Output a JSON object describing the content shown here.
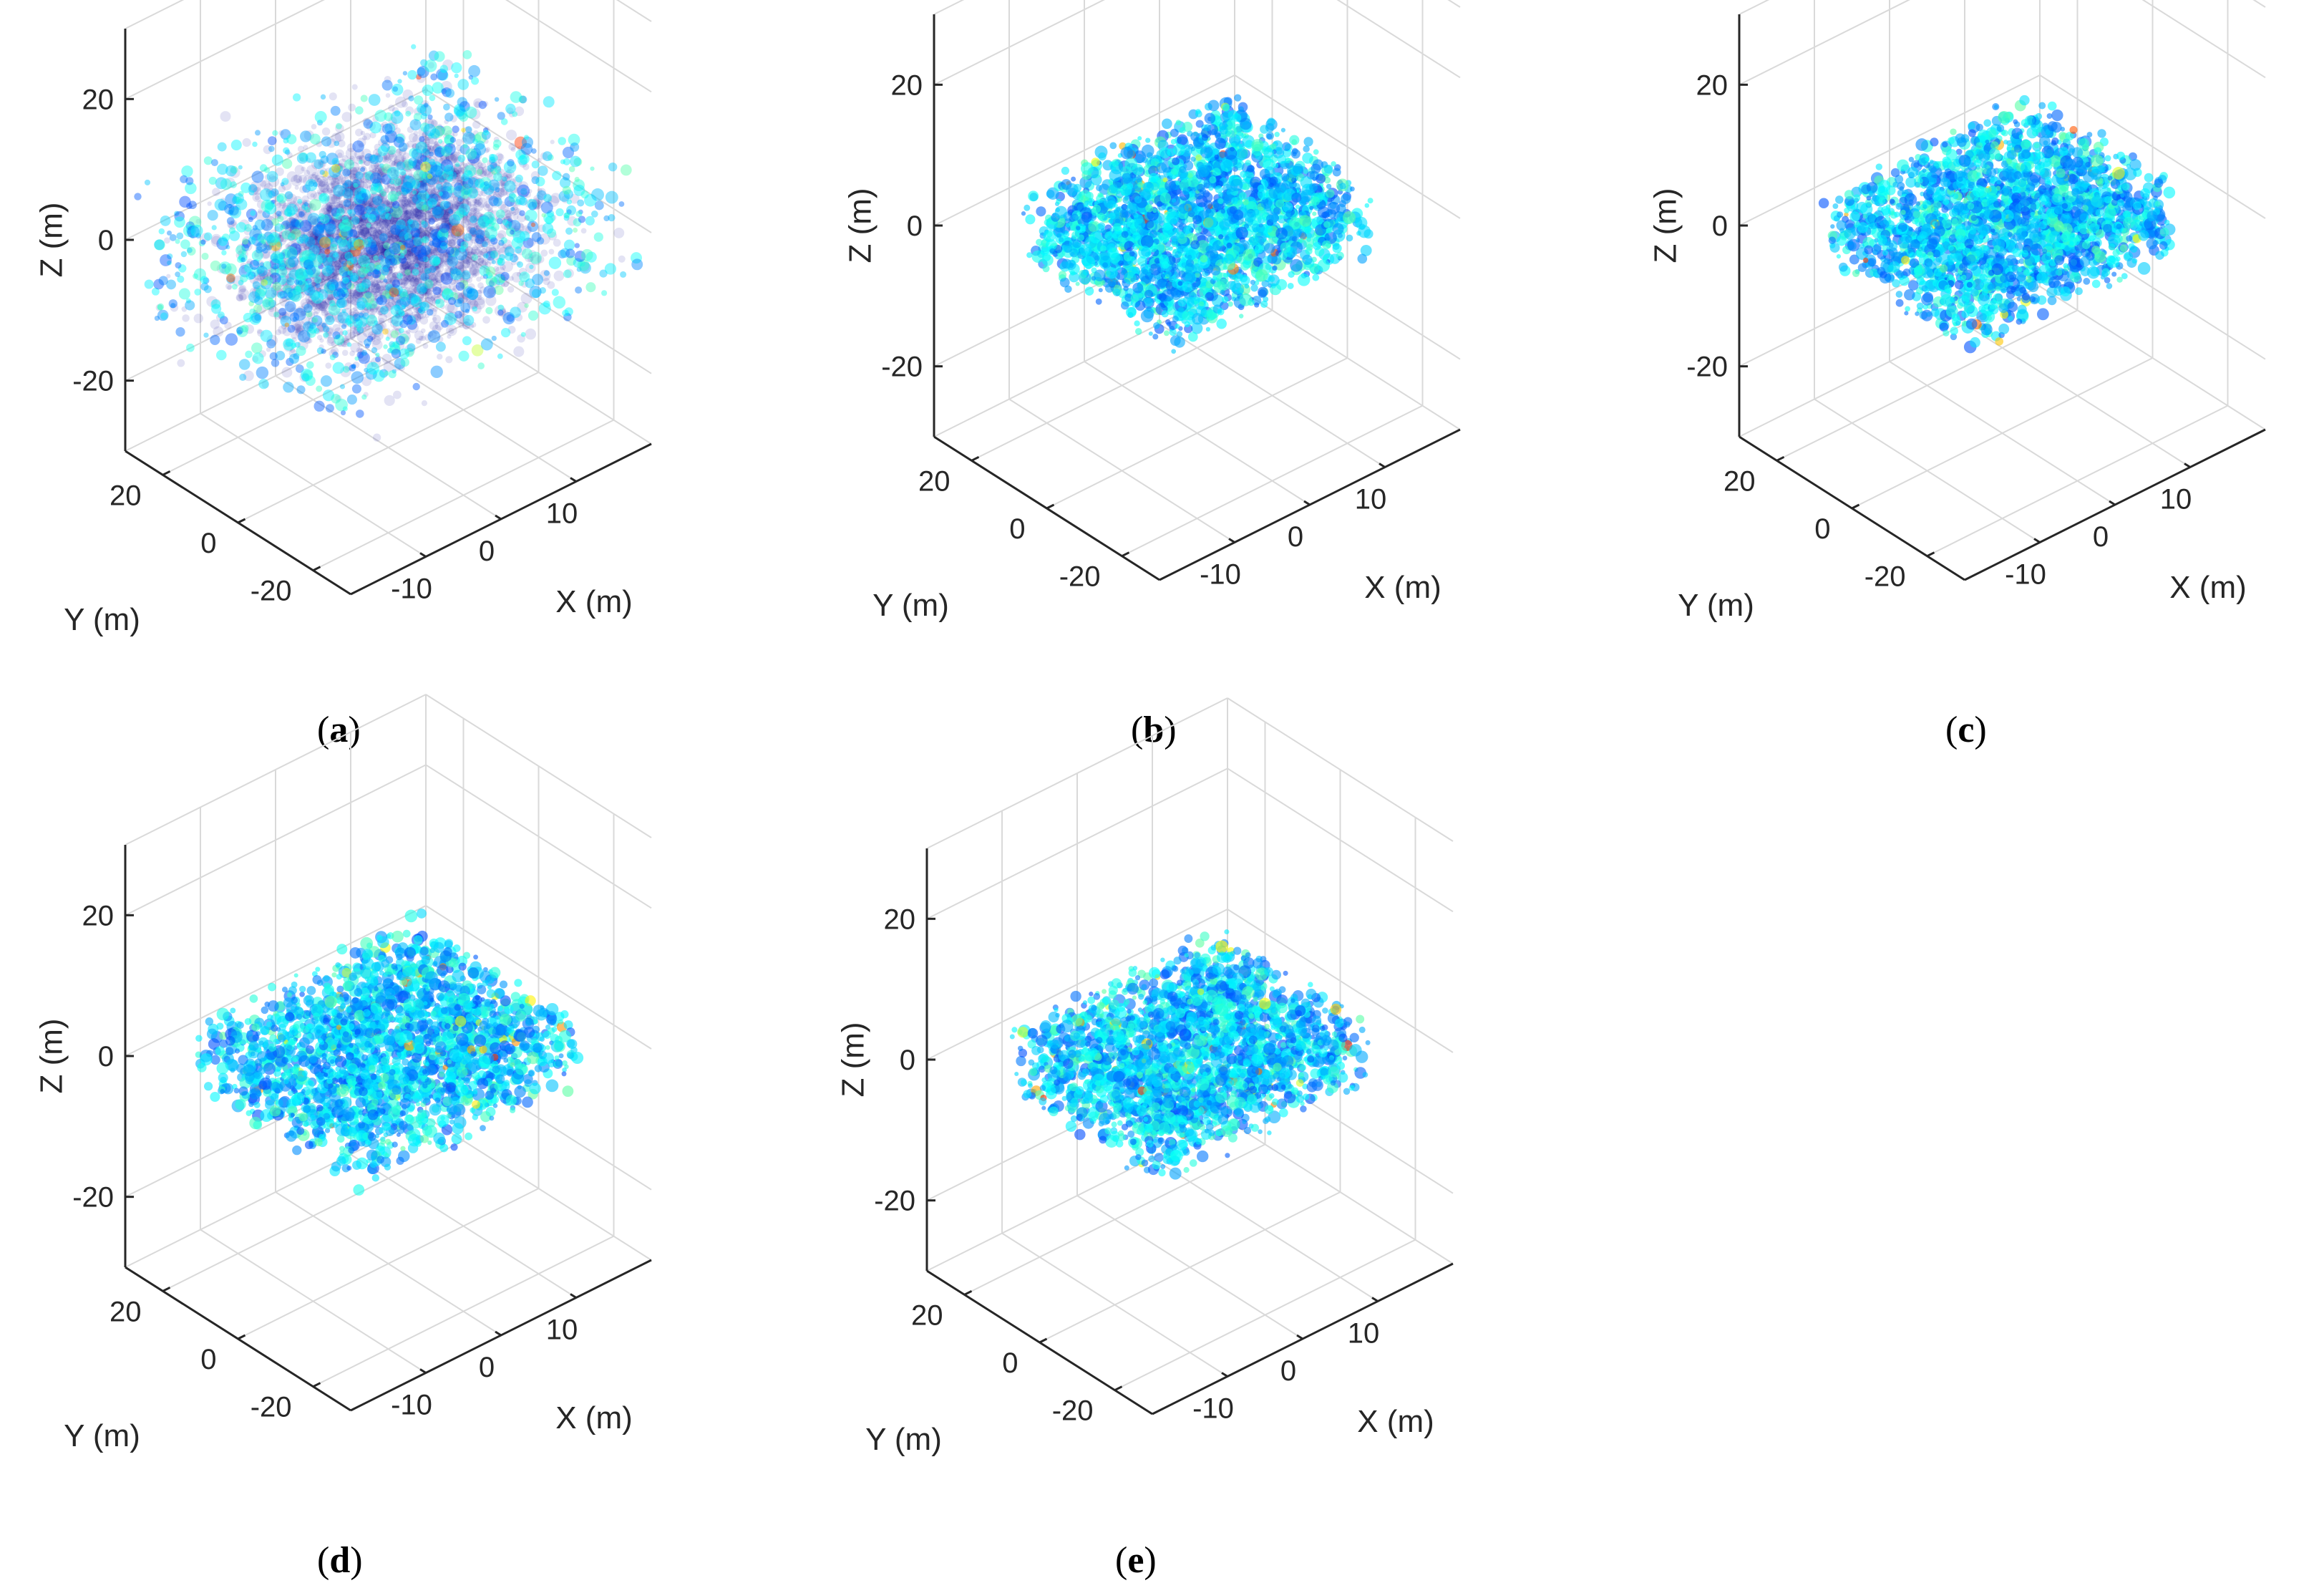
{
  "chart_data": [
    {
      "type": "scatter3d",
      "panel": "a",
      "caption_letter": "a",
      "xlabel": "X (m)",
      "ylabel": "Y (m)",
      "zlabel": "Z (m)",
      "xlim": [
        -20,
        20
      ],
      "ylim": [
        -30,
        30
      ],
      "zlim": [
        -30,
        30
      ],
      "x_ticks": [
        "-10",
        "0",
        "10"
      ],
      "x_tick_values": [
        -10,
        0,
        10
      ],
      "y_ticks": [
        "20",
        "0",
        "-20"
      ],
      "y_tick_values": [
        20,
        0,
        -20
      ],
      "z_ticks": [
        "20",
        "0",
        "-20"
      ],
      "z_tick_values": [
        20,
        0,
        -20
      ],
      "grid": true,
      "point_cloud": {
        "x_range": [
          -22,
          22
        ],
        "y_range": [
          -30,
          30
        ],
        "z_range": [
          -10,
          10
        ],
        "noise": "heavy",
        "colormap": "jet"
      }
    },
    {
      "type": "scatter3d",
      "panel": "b",
      "caption_letter": "b",
      "xlabel": "X (m)",
      "ylabel": "Y (m)",
      "zlabel": "Z (m)",
      "xlim": [
        -20,
        20
      ],
      "ylim": [
        -30,
        30
      ],
      "zlim": [
        -30,
        30
      ],
      "x_ticks": [
        "-10",
        "0",
        "10"
      ],
      "x_tick_values": [
        -10,
        0,
        10
      ],
      "y_ticks": [
        "20",
        "0",
        "-20"
      ],
      "y_tick_values": [
        20,
        0,
        -20
      ],
      "z_ticks": [
        "20",
        "0",
        "-20"
      ],
      "z_tick_values": [
        20,
        0,
        -20
      ],
      "grid": true,
      "point_cloud": {
        "x_range": [
          -15,
          15
        ],
        "y_range": [
          -22,
          22
        ],
        "z_range": [
          -5,
          5
        ],
        "noise": "low",
        "colormap": "jet"
      }
    },
    {
      "type": "scatter3d",
      "panel": "c",
      "caption_letter": "c",
      "xlabel": "X (m)",
      "ylabel": "Y (m)",
      "zlabel": "Z (m)",
      "xlim": [
        -20,
        20
      ],
      "ylim": [
        -30,
        30
      ],
      "zlim": [
        -30,
        30
      ],
      "x_ticks": [
        "-10",
        "0",
        "10"
      ],
      "x_tick_values": [
        -10,
        0,
        10
      ],
      "y_ticks": [
        "20",
        "0",
        "-20"
      ],
      "y_tick_values": [
        20,
        0,
        -20
      ],
      "z_ticks": [
        "20",
        "0",
        "-20"
      ],
      "z_tick_values": [
        20,
        0,
        -20
      ],
      "grid": true,
      "point_cloud": {
        "x_range": [
          -15,
          15
        ],
        "y_range": [
          -22,
          22
        ],
        "z_range": [
          -5,
          5
        ],
        "noise": "low",
        "colormap": "jet"
      }
    },
    {
      "type": "scatter3d",
      "panel": "d",
      "caption_letter": "d",
      "xlabel": "X (m)",
      "ylabel": "Y (m)",
      "zlabel": "Z (m)",
      "xlim": [
        -20,
        20
      ],
      "ylim": [
        -30,
        30
      ],
      "zlim": [
        -30,
        30
      ],
      "x_ticks": [
        "-10",
        "0",
        "10"
      ],
      "x_tick_values": [
        -10,
        0,
        10
      ],
      "y_ticks": [
        "20",
        "0",
        "-20"
      ],
      "y_tick_values": [
        20,
        0,
        -20
      ],
      "z_ticks": [
        "20",
        "0",
        "-20"
      ],
      "z_tick_values": [
        20,
        0,
        -20
      ],
      "grid": true,
      "point_cloud": {
        "x_range": [
          -16,
          16
        ],
        "y_range": [
          -24,
          24
        ],
        "z_range": [
          -5,
          5
        ],
        "noise": "low",
        "colormap": "jet"
      }
    },
    {
      "type": "scatter3d",
      "panel": "e",
      "caption_letter": "e",
      "xlabel": "X (m)",
      "ylabel": "Y (m)",
      "zlabel": "Z (m)",
      "xlim": [
        -20,
        20
      ],
      "ylim": [
        -30,
        30
      ],
      "zlim": [
        -30,
        30
      ],
      "x_ticks": [
        "-10",
        "0",
        "10"
      ],
      "x_tick_values": [
        -10,
        0,
        10
      ],
      "y_ticks": [
        "20",
        "0",
        "-20"
      ],
      "y_tick_values": [
        20,
        0,
        -20
      ],
      "z_ticks": [
        "20",
        "0",
        "-20"
      ],
      "z_tick_values": [
        20,
        0,
        -20
      ],
      "grid": true,
      "point_cloud": {
        "x_range": [
          -15,
          15
        ],
        "y_range": [
          -22,
          22
        ],
        "z_range": [
          -5,
          5
        ],
        "noise": "low",
        "colormap": "jet"
      }
    }
  ]
}
